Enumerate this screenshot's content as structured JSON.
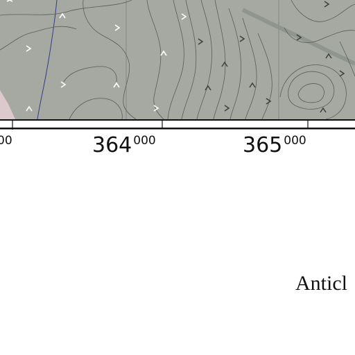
{
  "map": {
    "colors": {
      "terrain": "#a6a9a1",
      "pink_unit": "#dcc9cd",
      "contour": "#585c58",
      "symbol_light": "#ffffff",
      "symbol_dark": "#3b3f3d",
      "stream": "#2f3b8c",
      "road": "#8d958a",
      "frame": "#111111"
    },
    "coordinates": {
      "label_363": {
        "major": "",
        "minor": "00"
      },
      "label_364": {
        "major": "364",
        "minor": "000"
      },
      "label_365": {
        "major": "365",
        "minor": "000"
      }
    },
    "legend_text": "Anticl"
  }
}
